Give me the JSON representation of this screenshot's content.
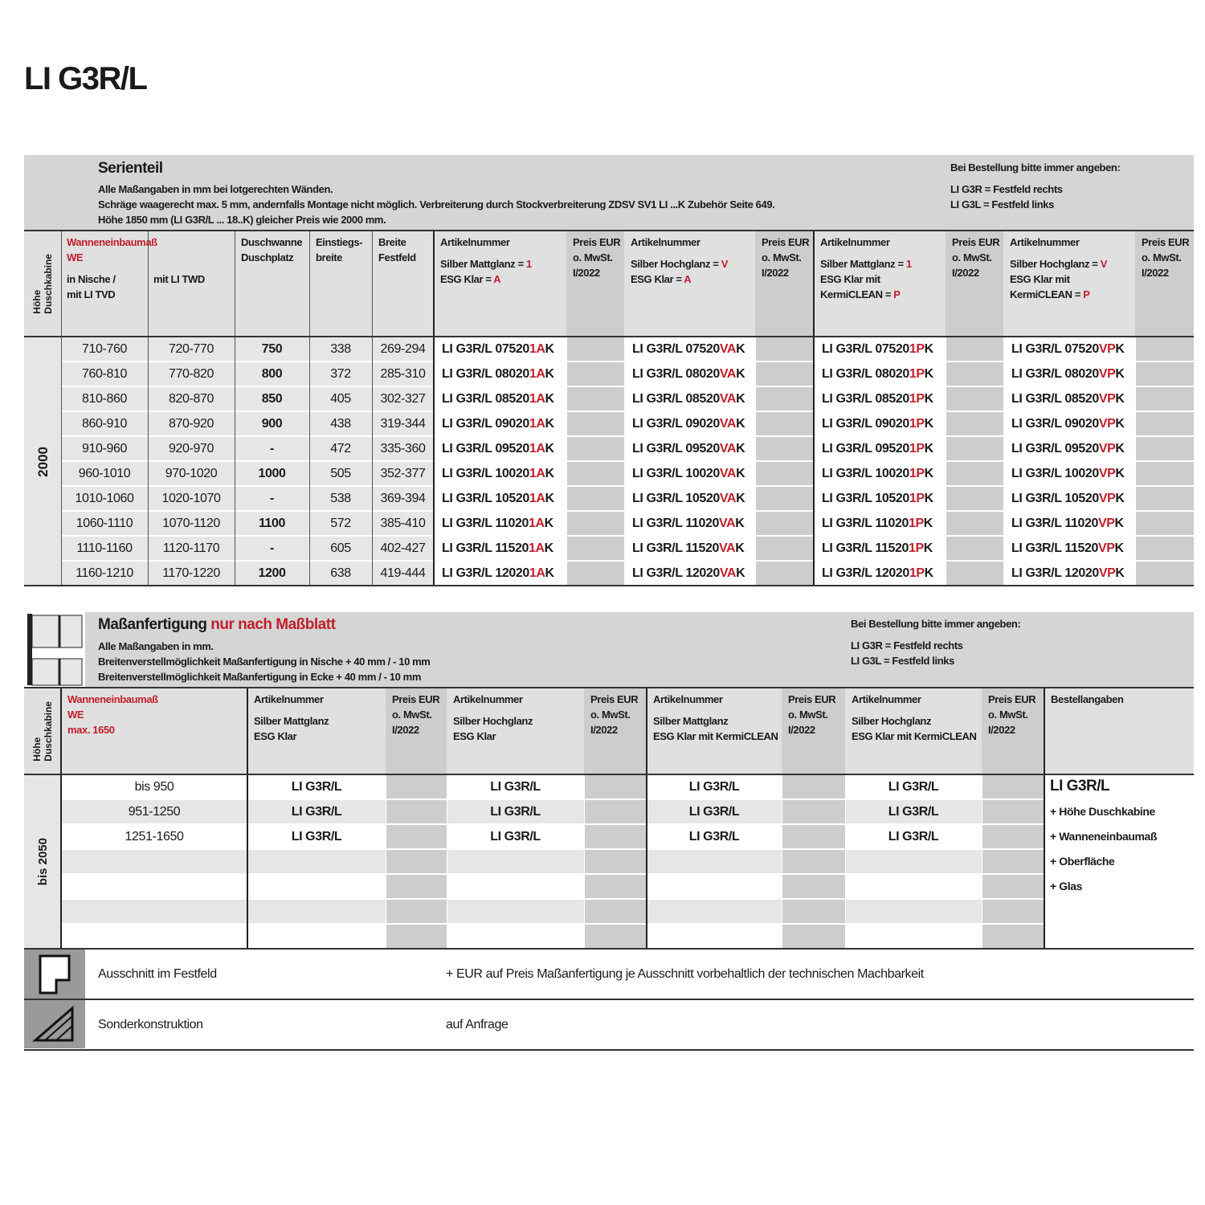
{
  "title": "LI G3R/L",
  "serie": {
    "heading": "Serienteil",
    "notes": [
      "Alle Maßangaben in mm bei lotgerechten Wänden.",
      "Schräge waagerecht max. 5 mm, andernfalls Montage nicht möglich. Verbreiterung durch Stockverbreiterung ZDSV SV1 LI ...K Zubehör Seite 649.",
      "Höhe 1850 mm (LI G3R/L ... 18..K) gleicher Preis wie 2000 mm."
    ],
    "order": [
      "Bei Bestellung bitte immer angeben:",
      "LI G3R = Festfeld rechts",
      "LI G3L = Festfeld links"
    ],
    "headers": {
      "hoehe": [
        "Höhe",
        "Duschkabine"
      ],
      "we": [
        {
          "accent": "Wanneneinbaumaß"
        },
        {
          "accent": "WE"
        }
      ],
      "nische": [
        "in Nische /",
        "mit LI TVD"
      ],
      "twd": [
        "mit LI TWD"
      ],
      "cols": [
        [
          "Duschwanne",
          "Duschplatz"
        ],
        [
          "Einstiegs-",
          "breite"
        ],
        [
          "Breite",
          "Festfeld"
        ],
        [
          "Artikelnummer",
          {
            "text": "Silber Mattglanz = ",
            "accent": "1"
          },
          {
            "text": "ESG Klar = ",
            "accent": "A"
          }
        ],
        [
          "Preis EUR",
          "o. MwSt.",
          "I/2022"
        ],
        [
          "Artikelnummer",
          {
            "text": "Silber Hochglanz = ",
            "accent": "V"
          },
          {
            "text": "ESG Klar = ",
            "accent": "A"
          }
        ],
        [
          "Preis EUR",
          "o. MwSt.",
          "I/2022"
        ],
        [
          "Artikelnummer",
          {
            "text": "Silber Mattglanz = ",
            "accent": "1"
          },
          "ESG Klar mit",
          {
            "text": "KermiCLEAN = ",
            "accent": "P"
          }
        ],
        [
          "Preis EUR",
          "o. MwSt.",
          "I/2022"
        ],
        [
          "Artikelnummer",
          {
            "text": "Silber Hochglanz = ",
            "accent": "V"
          },
          "ESG Klar mit",
          {
            "text": "KermiCLEAN = ",
            "accent": "P"
          }
        ],
        [
          "Preis EUR",
          "o. MwSt.",
          "I/2022"
        ]
      ]
    },
    "height": "2000",
    "rows": [
      [
        "710-760",
        "720-770",
        "750",
        "338",
        "269-294",
        {
          "base": "LI G3R/L 07520 ",
          "accent": "1A",
          "suffix": "K"
        },
        {
          "base": "LI G3R/L 07520 ",
          "accent": "VA",
          "suffix": "K"
        },
        {
          "base": "LI G3R/L 07520 ",
          "accent": "1P",
          "suffix": "K"
        },
        {
          "base": "LI G3R/L 07520 ",
          "accent": "VP",
          "suffix": "K"
        }
      ],
      [
        "760-810",
        "770-820",
        "800",
        "372",
        "285-310",
        {
          "base": "LI G3R/L 08020 ",
          "accent": "1A",
          "suffix": "K"
        },
        {
          "base": "LI G3R/L 08020 ",
          "accent": "VA",
          "suffix": "K"
        },
        {
          "base": "LI G3R/L 08020 ",
          "accent": "1P",
          "suffix": "K"
        },
        {
          "base": "LI G3R/L 08020 ",
          "accent": "VP",
          "suffix": "K"
        }
      ],
      [
        "810-860",
        "820-870",
        "850",
        "405",
        "302-327",
        {
          "base": "LI G3R/L 08520 ",
          "accent": "1A",
          "suffix": "K"
        },
        {
          "base": "LI G3R/L 08520 ",
          "accent": "VA",
          "suffix": "K"
        },
        {
          "base": "LI G3R/L 08520 ",
          "accent": "1P",
          "suffix": "K"
        },
        {
          "base": "LI G3R/L 08520 ",
          "accent": "VP",
          "suffix": "K"
        }
      ],
      [
        "860-910",
        "870-920",
        "900",
        "438",
        "319-344",
        {
          "base": "LI G3R/L 09020 ",
          "accent": "1A",
          "suffix": "K"
        },
        {
          "base": "LI G3R/L 09020 ",
          "accent": "VA",
          "suffix": "K"
        },
        {
          "base": "LI G3R/L 09020 ",
          "accent": "1P",
          "suffix": "K"
        },
        {
          "base": "LI G3R/L 09020 ",
          "accent": "VP",
          "suffix": "K"
        }
      ],
      [
        "910-960",
        "920-970",
        "-",
        "472",
        "335-360",
        {
          "base": "LI G3R/L 09520 ",
          "accent": "1A",
          "suffix": "K"
        },
        {
          "base": "LI G3R/L 09520 ",
          "accent": "VA",
          "suffix": "K"
        },
        {
          "base": "LI G3R/L 09520 ",
          "accent": "1P",
          "suffix": "K"
        },
        {
          "base": "LI G3R/L 09520 ",
          "accent": "VP",
          "suffix": "K"
        }
      ],
      [
        "960-1010",
        "970-1020",
        "1000",
        "505",
        "352-377",
        {
          "base": "LI G3R/L 10020 ",
          "accent": "1A",
          "suffix": "K"
        },
        {
          "base": "LI G3R/L 10020 ",
          "accent": "VA",
          "suffix": "K"
        },
        {
          "base": "LI G3R/L 10020 ",
          "accent": "1P",
          "suffix": "K"
        },
        {
          "base": "LI G3R/L 10020 ",
          "accent": "VP",
          "suffix": "K"
        }
      ],
      [
        "1010-1060",
        "1020-1070",
        "-",
        "538",
        "369-394",
        {
          "base": "LI G3R/L 10520 ",
          "accent": "1A",
          "suffix": "K"
        },
        {
          "base": "LI G3R/L 10520 ",
          "accent": "VA",
          "suffix": "K"
        },
        {
          "base": "LI G3R/L 10520 ",
          "accent": "1P",
          "suffix": "K"
        },
        {
          "base": "LI G3R/L 10520 ",
          "accent": "VP",
          "suffix": "K"
        }
      ],
      [
        "1060-1110",
        "1070-1120",
        "1100",
        "572",
        "385-410",
        {
          "base": "LI G3R/L 11020 ",
          "accent": "1A",
          "suffix": "K"
        },
        {
          "base": "LI G3R/L 11020 ",
          "accent": "VA",
          "suffix": "K"
        },
        {
          "base": "LI G3R/L 11020 ",
          "accent": "1P",
          "suffix": "K"
        },
        {
          "base": "LI G3R/L 11020 ",
          "accent": "VP",
          "suffix": "K"
        }
      ],
      [
        "1110-1160",
        "1120-1170",
        "-",
        "605",
        "402-427",
        {
          "base": "LI G3R/L 11520 ",
          "accent": "1A",
          "suffix": "K"
        },
        {
          "base": "LI G3R/L 11520 ",
          "accent": "VA",
          "suffix": "K"
        },
        {
          "base": "LI G3R/L 11520 ",
          "accent": "1P",
          "suffix": "K"
        },
        {
          "base": "LI G3R/L 11520 ",
          "accent": "VP",
          "suffix": "K"
        }
      ],
      [
        "1160-1210",
        "1170-1220",
        "1200",
        "638",
        "419-444",
        {
          "base": "LI G3R/L 12020 ",
          "accent": "1A",
          "suffix": "K"
        },
        {
          "base": "LI G3R/L 12020 ",
          "accent": "VA",
          "suffix": "K"
        },
        {
          "base": "LI G3R/L 12020 ",
          "accent": "1P",
          "suffix": "K"
        },
        {
          "base": "LI G3R/L 12020 ",
          "accent": "VP",
          "suffix": "K"
        }
      ]
    ]
  },
  "mass": {
    "heading": {
      "text": "Maßanfertigung ",
      "accent": "nur nach Maßblatt"
    },
    "notes": [
      "Alle Maßangaben in mm.",
      "Breitenverstellmöglichkeit Maßanfertigung in Nische + 40 mm / - 10 mm",
      "Breitenverstellmöglichkeit Maßanfertigung in Ecke + 40 mm / - 10 mm"
    ],
    "order": [
      "Bei Bestellung bitte immer angeben:",
      "LI G3R = Festfeld rechts",
      "LI G3L = Festfeld links"
    ],
    "headers": {
      "hoehe": [
        "Höhe",
        "Duschkabine"
      ],
      "cols": [
        [
          {
            "accent": "Wanneneinbaumaß"
          },
          {
            "accent": "WE"
          },
          {
            "accent": "max. 1650"
          }
        ],
        [
          "Artikelnummer",
          "Silber Mattglanz",
          "ESG Klar"
        ],
        [
          "Preis EUR",
          "o. MwSt.",
          "I/2022"
        ],
        [
          "Artikelnummer",
          "Silber Hochglanz",
          "ESG Klar"
        ],
        [
          "Preis EUR",
          "o. MwSt.",
          "I/2022"
        ],
        [
          "Artikelnummer",
          "Silber Mattglanz",
          "ESG Klar mit KermiCLEAN"
        ],
        [
          "Preis EUR",
          "o. MwSt.",
          "I/2022"
        ],
        [
          "Artikelnummer",
          "Silber Hochglanz",
          "ESG Klar mit KermiCLEAN"
        ],
        [
          "Preis EUR",
          "o. MwSt.",
          "I/2022"
        ],
        [
          "Bestellangaben"
        ]
      ]
    },
    "height": "bis 2050",
    "rows": [
      [
        "bis 950",
        "LI G3R/L",
        "LI G3R/L",
        "LI G3R/L",
        "LI G3R/L"
      ],
      [
        "951-1250",
        "LI G3R/L",
        "LI G3R/L",
        "LI G3R/L",
        "LI G3R/L"
      ],
      [
        "1251-1650",
        "LI G3R/L",
        "LI G3R/L",
        "LI G3R/L",
        "LI G3R/L"
      ]
    ],
    "bestell": {
      "title": "LI G3R/L",
      "items": [
        "+ Höhe Duschkabine",
        "+ Wanneneinbaumaß",
        "+ Oberfläche",
        "+ Glas"
      ]
    }
  },
  "extras": [
    {
      "label": "Ausschnitt im Festfeld",
      "text": "+ EUR  auf Preis Maßanfertigung je Ausschnitt vorbehaltlich der technischen Machbarkeit"
    },
    {
      "label": "Sonderkonstruktion",
      "text": "auf Anfrage"
    }
  ]
}
